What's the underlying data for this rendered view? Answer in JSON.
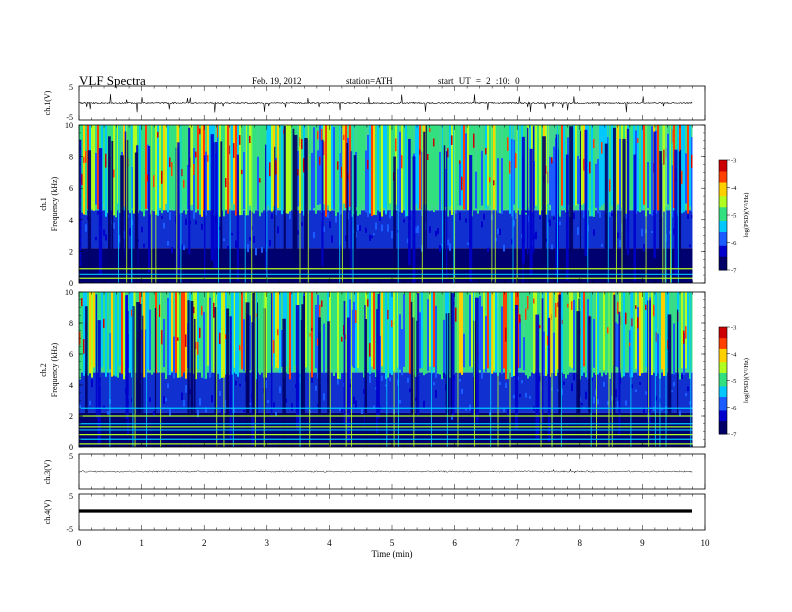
{
  "header": {
    "title": "VLF Spectra",
    "date": "Feb. 19, 2012",
    "station": "station=ATH",
    "start": "start UT = 2 :10: 0"
  },
  "colors": {
    "colormap": [
      "#000066",
      "#0000cc",
      "#1a5cff",
      "#00c8ff",
      "#33e080",
      "#b0ff20",
      "#ffd000",
      "#ff4000",
      "#cc0000"
    ]
  },
  "chart_data": [
    {
      "type": "line",
      "panel": "ch1-waveform",
      "ylabel": "ch.1(V)",
      "ylim": [
        -5,
        5
      ],
      "yticks": [
        "5",
        "-5"
      ],
      "description_values": {
        "baseline_v": 0.0,
        "spike_amplitude_v": 2.0
      }
    },
    {
      "type": "heatmap",
      "panel": "ch1-spectrogram",
      "ylabel": "Frequency (kHz)",
      "channel_label": "ch.1",
      "ylim": [
        0,
        10
      ],
      "yticks": [
        "0",
        "2",
        "4",
        "6",
        "8",
        "10"
      ],
      "colorbar": {
        "label": "log(PSD)(V²/Hz)",
        "ticks": [
          "-3",
          "-4",
          "-5",
          "-6",
          "-7"
        ],
        "range": [
          -7,
          -3
        ]
      },
      "features": {
        "lowband_top_khz": 4.6,
        "line_khz": [
          0.3,
          0.55,
          0.9
        ]
      }
    },
    {
      "type": "heatmap",
      "panel": "ch2-spectrogram",
      "ylabel": "Frequency (kHz)",
      "channel_label": "ch.2",
      "ylim": [
        0,
        10
      ],
      "yticks": [
        "0",
        "2",
        "4",
        "6",
        "8",
        "10"
      ],
      "colorbar": {
        "label": "log(PSD)(V²/Hz)",
        "ticks": [
          "-3",
          "-4",
          "-5",
          "-6",
          "-7"
        ],
        "range": [
          -7,
          -3
        ]
      },
      "features": {
        "lowband_top_khz": 4.8,
        "line_khz": [
          0.2,
          0.5,
          0.8,
          1.1,
          1.3,
          1.5,
          2.0,
          2.5
        ]
      }
    },
    {
      "type": "line",
      "panel": "ch3-waveform",
      "ylabel": "ch.3(V)",
      "ylim": [
        -5,
        5
      ],
      "yticks": [
        "5",
        "-5"
      ]
    },
    {
      "type": "line",
      "panel": "ch4-waveform",
      "ylabel": "ch.4(V)",
      "ylim": [
        -5,
        5
      ],
      "yticks": [
        "5",
        "-5"
      ]
    }
  ],
  "xaxis": {
    "label": "Time (min)",
    "xlim": [
      0,
      10
    ],
    "ticks": [
      "0",
      "1",
      "2",
      "3",
      "4",
      "5",
      "6",
      "7",
      "8",
      "9",
      "10"
    ],
    "data_end_min": 9.8
  }
}
